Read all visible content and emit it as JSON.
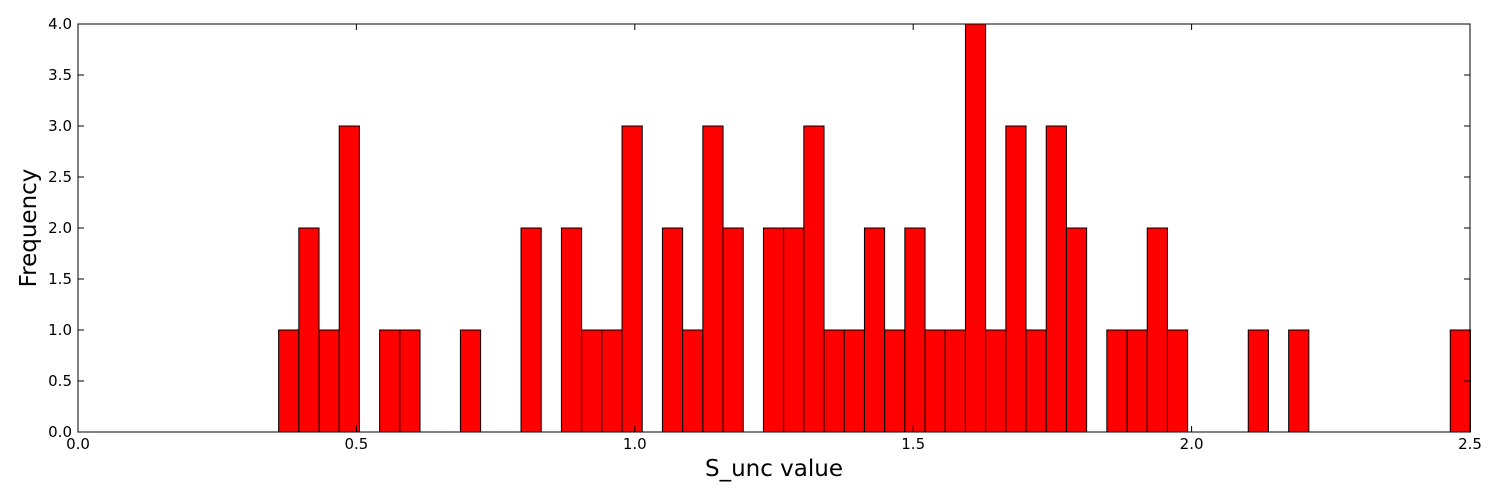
{
  "chart_data": {
    "type": "bar",
    "title": "",
    "xlabel": "S_unc value",
    "ylabel": "Frequency",
    "xlim": [
      0.0,
      2.5
    ],
    "ylim": [
      0.0,
      4.0
    ],
    "xticks": [
      "0.0",
      "0.5",
      "1.0",
      "1.5",
      "2.0",
      "2.5"
    ],
    "yticks": [
      "0.0",
      "0.5",
      "1.0",
      "1.5",
      "2.0",
      "2.5",
      "3.0",
      "3.5",
      "4.0"
    ],
    "grid": false,
    "legend": "none",
    "bar_color": "#ff0000",
    "bins": {
      "start": 0.3603,
      "width": 0.03628,
      "counts": [
        1,
        2,
        1,
        3,
        0,
        1,
        1,
        0,
        0,
        1,
        0,
        0,
        2,
        0,
        2,
        1,
        1,
        3,
        0,
        2,
        1,
        3,
        2,
        0,
        2,
        2,
        3,
        1,
        1,
        2,
        1,
        2,
        1,
        1,
        4,
        1,
        3,
        1,
        3,
        2,
        0,
        1,
        1,
        2,
        1,
        0,
        0,
        0,
        1,
        0,
        1,
        0,
        0,
        0,
        0,
        0,
        0,
        0,
        1
      ]
    }
  }
}
